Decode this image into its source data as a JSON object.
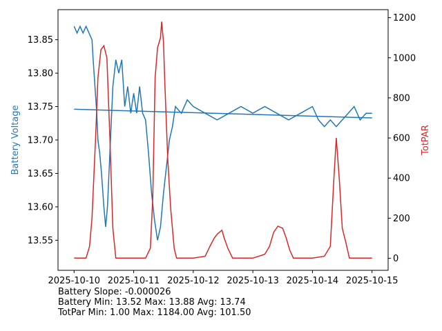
{
  "chart_data": {
    "type": "line",
    "title": "",
    "x_ticks": [
      "2025-10-10",
      "2025-10-11",
      "2025-10-12",
      "2025-10-13",
      "2025-10-14",
      "2025-10-15"
    ],
    "x_range_days": [
      -0.27,
      5.27
    ],
    "left_axis": {
      "label": "Battery Voltage",
      "color": "#1f77b4",
      "ylim": [
        13.505,
        13.895
      ],
      "ticks": [
        "13.55",
        "13.60",
        "13.65",
        "13.70",
        "13.75",
        "13.80",
        "13.85"
      ]
    },
    "right_axis": {
      "label": "TotPAR",
      "color": "#d62728",
      "ylim": [
        -60,
        1240
      ],
      "ticks": [
        "0",
        "200",
        "400",
        "600",
        "800",
        "1000",
        "1200"
      ]
    },
    "series": [
      {
        "axis": "left",
        "color": "#1f77b4",
        "note_points": "x = days since 2025-10-10",
        "points": [
          [
            0.0,
            13.87
          ],
          [
            0.05,
            13.86
          ],
          [
            0.1,
            13.87
          ],
          [
            0.15,
            13.86
          ],
          [
            0.2,
            13.87
          ],
          [
            0.25,
            13.86
          ],
          [
            0.3,
            13.85
          ],
          [
            0.32,
            13.82
          ],
          [
            0.35,
            13.78
          ],
          [
            0.38,
            13.74
          ],
          [
            0.4,
            13.7
          ],
          [
            0.43,
            13.68
          ],
          [
            0.46,
            13.65
          ],
          [
            0.5,
            13.6
          ],
          [
            0.53,
            13.57
          ],
          [
            0.56,
            13.6
          ],
          [
            0.6,
            13.68
          ],
          [
            0.65,
            13.78
          ],
          [
            0.7,
            13.82
          ],
          [
            0.75,
            13.8
          ],
          [
            0.8,
            13.82
          ],
          [
            0.85,
            13.75
          ],
          [
            0.9,
            13.78
          ],
          [
            0.95,
            13.74
          ],
          [
            1.0,
            13.77
          ],
          [
            1.05,
            13.74
          ],
          [
            1.1,
            13.78
          ],
          [
            1.15,
            13.74
          ],
          [
            1.2,
            13.73
          ],
          [
            1.25,
            13.68
          ],
          [
            1.3,
            13.62
          ],
          [
            1.35,
            13.58
          ],
          [
            1.4,
            13.55
          ],
          [
            1.45,
            13.57
          ],
          [
            1.5,
            13.62
          ],
          [
            1.55,
            13.66
          ],
          [
            1.6,
            13.7
          ],
          [
            1.65,
            13.72
          ],
          [
            1.7,
            13.75
          ],
          [
            1.8,
            13.74
          ],
          [
            1.9,
            13.76
          ],
          [
            2.0,
            13.75
          ],
          [
            2.2,
            13.74
          ],
          [
            2.4,
            13.73
          ],
          [
            2.6,
            13.74
          ],
          [
            2.8,
            13.75
          ],
          [
            3.0,
            13.74
          ],
          [
            3.2,
            13.75
          ],
          [
            3.4,
            13.74
          ],
          [
            3.6,
            13.73
          ],
          [
            3.8,
            13.74
          ],
          [
            4.0,
            13.75
          ],
          [
            4.1,
            13.73
          ],
          [
            4.2,
            13.72
          ],
          [
            4.3,
            13.73
          ],
          [
            4.4,
            13.72
          ],
          [
            4.5,
            13.73
          ],
          [
            4.6,
            13.74
          ],
          [
            4.7,
            13.75
          ],
          [
            4.8,
            13.73
          ],
          [
            4.9,
            13.74
          ],
          [
            5.0,
            13.74
          ]
        ]
      },
      {
        "axis": "left",
        "color": "#1f77b4",
        "note_points": "linear trend",
        "points": [
          [
            0.0,
            13.746
          ],
          [
            5.0,
            13.733
          ]
        ]
      },
      {
        "axis": "right",
        "color": "#d62728",
        "note_points": "x = days since 2025-10-10",
        "points": [
          [
            0.0,
            1
          ],
          [
            0.2,
            1
          ],
          [
            0.26,
            60
          ],
          [
            0.3,
            200
          ],
          [
            0.36,
            600
          ],
          [
            0.4,
            900
          ],
          [
            0.45,
            1040
          ],
          [
            0.5,
            1060
          ],
          [
            0.55,
            1000
          ],
          [
            0.6,
            600
          ],
          [
            0.65,
            150
          ],
          [
            0.7,
            1
          ],
          [
            1.0,
            1
          ],
          [
            1.2,
            1
          ],
          [
            1.28,
            50
          ],
          [
            1.32,
            300
          ],
          [
            1.36,
            900
          ],
          [
            1.4,
            1050
          ],
          [
            1.45,
            1100
          ],
          [
            1.47,
            1180
          ],
          [
            1.5,
            1080
          ],
          [
            1.52,
            900
          ],
          [
            1.57,
            500
          ],
          [
            1.62,
            250
          ],
          [
            1.68,
            50
          ],
          [
            1.72,
            1
          ],
          [
            2.0,
            1
          ],
          [
            2.2,
            10
          ],
          [
            2.28,
            60
          ],
          [
            2.35,
            100
          ],
          [
            2.4,
            120
          ],
          [
            2.48,
            140
          ],
          [
            2.52,
            100
          ],
          [
            2.58,
            50
          ],
          [
            2.66,
            1
          ],
          [
            3.0,
            1
          ],
          [
            3.2,
            20
          ],
          [
            3.28,
            60
          ],
          [
            3.35,
            130
          ],
          [
            3.42,
            160
          ],
          [
            3.5,
            150
          ],
          [
            3.56,
            100
          ],
          [
            3.62,
            40
          ],
          [
            3.68,
            1
          ],
          [
            4.0,
            1
          ],
          [
            4.2,
            10
          ],
          [
            4.3,
            60
          ],
          [
            4.36,
            400
          ],
          [
            4.4,
            600
          ],
          [
            4.45,
            400
          ],
          [
            4.5,
            150
          ],
          [
            4.56,
            80
          ],
          [
            4.62,
            1
          ],
          [
            5.0,
            1
          ]
        ]
      }
    ],
    "annotations": [
      "Battery Slope: -0.000026",
      "Battery Min: 13.52 Max: 13.88 Avg: 13.74",
      "TotPar Min: 1.00 Max: 1184.00 Avg: 101.50"
    ]
  }
}
